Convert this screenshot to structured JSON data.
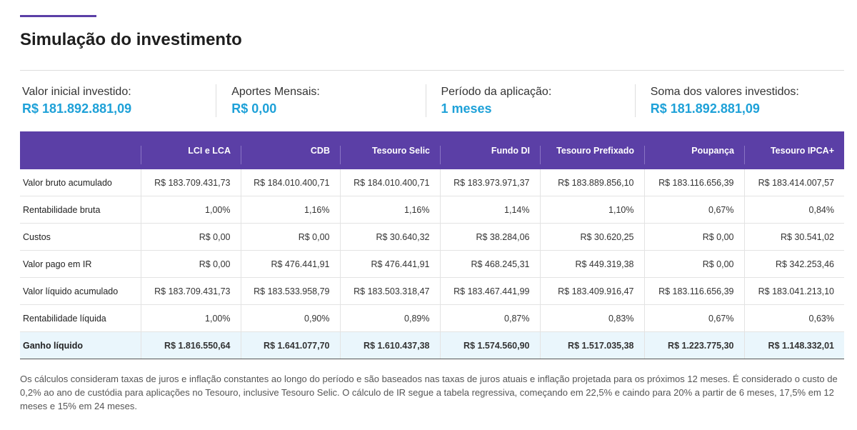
{
  "header": {
    "title": "Simulação do investimento"
  },
  "summary": [
    {
      "label": "Valor inicial investido:",
      "value": "R$ 181.892.881,09"
    },
    {
      "label": "Aportes Mensais:",
      "value": "R$ 0,00"
    },
    {
      "label": "Período da aplicação:",
      "value": "1 meses"
    },
    {
      "label": "Soma dos valores investidos:",
      "value": "R$ 181.892.881,09"
    }
  ],
  "table": {
    "columns": [
      "LCI e LCA",
      "CDB",
      "Tesouro Selic",
      "Fundo DI",
      "Tesouro Prefixado",
      "Poupança",
      "Tesouro IPCA+"
    ],
    "rows": [
      {
        "label": "Valor bruto acumulado",
        "values": [
          "R$ 183.709.431,73",
          "R$ 184.010.400,71",
          "R$ 184.010.400,71",
          "R$ 183.973.971,37",
          "R$ 183.889.856,10",
          "R$ 183.116.656,39",
          "R$ 183.414.007,57"
        ]
      },
      {
        "label": "Rentabilidade bruta",
        "values": [
          "1,00%",
          "1,16%",
          "1,16%",
          "1,14%",
          "1,10%",
          "0,67%",
          "0,84%"
        ]
      },
      {
        "label": "Custos",
        "values": [
          "R$ 0,00",
          "R$ 0,00",
          "R$ 30.640,32",
          "R$ 38.284,06",
          "R$ 30.620,25",
          "R$ 0,00",
          "R$ 30.541,02"
        ]
      },
      {
        "label": "Valor pago em IR",
        "values": [
          "R$ 0,00",
          "R$ 476.441,91",
          "R$ 476.441,91",
          "R$ 468.245,31",
          "R$ 449.319,38",
          "R$ 0,00",
          "R$ 342.253,46"
        ]
      },
      {
        "label": "Valor líquido acumulado",
        "values": [
          "R$ 183.709.431,73",
          "R$ 183.533.958,79",
          "R$ 183.503.318,47",
          "R$ 183.467.441,99",
          "R$ 183.409.916,47",
          "R$ 183.116.656,39",
          "R$ 183.041.213,10"
        ]
      },
      {
        "label": "Rentabilidade líquida",
        "values": [
          "1,00%",
          "0,90%",
          "0,89%",
          "0,87%",
          "0,83%",
          "0,67%",
          "0,63%"
        ]
      },
      {
        "label": "Ganho líquido",
        "values": [
          "R$ 1.816.550,64",
          "R$ 1.641.077,70",
          "R$ 1.610.437,38",
          "R$ 1.574.560,90",
          "R$ 1.517.035,38",
          "R$ 1.223.775,30",
          "R$ 1.148.332,01"
        ]
      }
    ]
  },
  "footnote": "Os cálculos consideram taxas de juros e inflação constantes ao longo do período e são baseados nas taxas de juros atuais e inflação projetada para os próximos 12 meses. É considerado o custo de 0,2% ao ano de custódia para aplicações no Tesouro, inclusive Tesouro Selic. O cálculo de IR segue a tabela regressiva, começando em 22,5% e caindo para 20% a partir de 6 meses, 17,5% em 12 meses e 15% em 24 meses."
}
